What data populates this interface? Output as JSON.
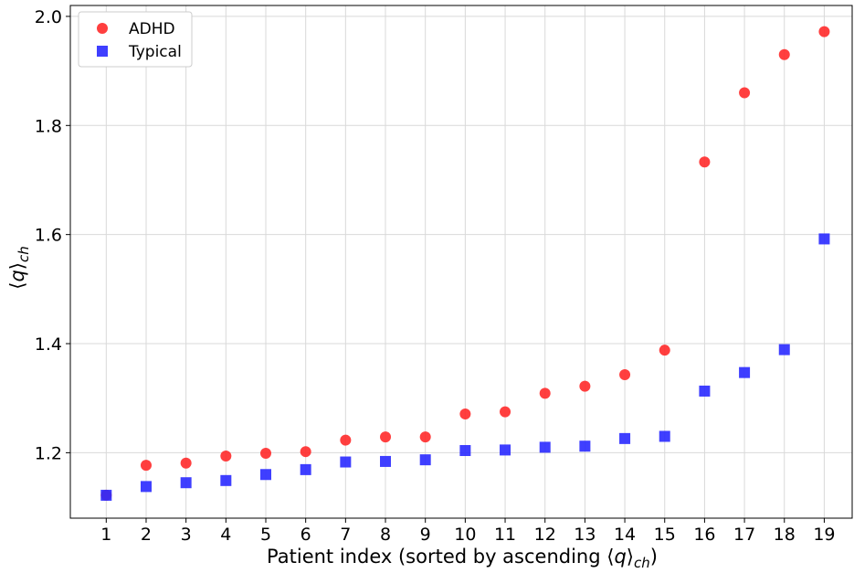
{
  "chart_data": {
    "type": "scatter",
    "xlabel": "Patient index (sorted by ascending ⟨q⟩ch)",
    "ylabel": "⟨q⟩ch",
    "xlim": [
      0.1,
      19.7
    ],
    "ylim": [
      1.08,
      2.02
    ],
    "x": [
      1,
      2,
      3,
      4,
      5,
      6,
      7,
      8,
      9,
      10,
      11,
      12,
      13,
      14,
      15,
      16,
      17,
      18,
      19
    ],
    "xticks": [
      1,
      2,
      3,
      4,
      5,
      6,
      7,
      8,
      9,
      10,
      11,
      12,
      13,
      14,
      15,
      16,
      17,
      18,
      19
    ],
    "yticks": [
      1.2,
      1.4,
      1.6,
      1.8,
      2.0
    ],
    "ytick_labels": [
      "1.2",
      "1.4",
      "1.6",
      "1.8",
      "2.0"
    ],
    "grid": true,
    "legend_placement": "top-left",
    "series": [
      {
        "name": "ADHD",
        "marker": "circle",
        "color": "#ff2a2a",
        "values": [
          1.122,
          1.177,
          1.181,
          1.194,
          1.199,
          1.202,
          1.223,
          1.229,
          1.229,
          1.271,
          1.275,
          1.309,
          1.322,
          1.343,
          1.388,
          1.733,
          1.86,
          1.93,
          1.972
        ]
      },
      {
        "name": "Typical",
        "marker": "square",
        "color": "#2a2aff",
        "values": [
          1.122,
          1.138,
          1.145,
          1.149,
          1.16,
          1.169,
          1.183,
          1.184,
          1.187,
          1.204,
          1.205,
          1.21,
          1.212,
          1.226,
          1.23,
          1.313,
          1.347,
          1.389,
          1.592
        ]
      }
    ]
  }
}
